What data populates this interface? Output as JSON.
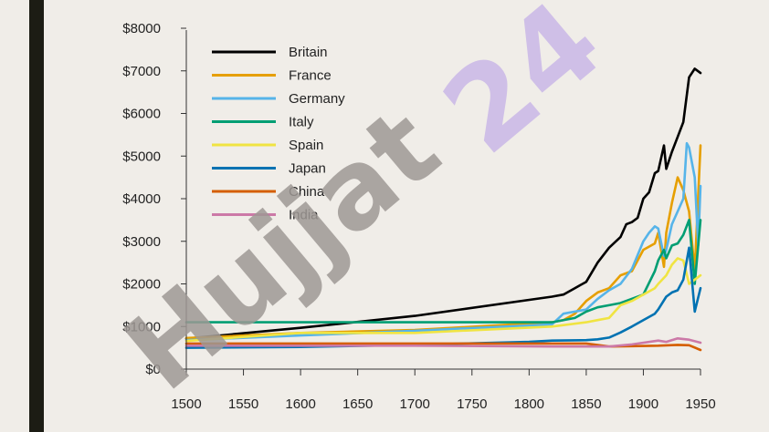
{
  "watermarks": [
    {
      "text": "Hujjat",
      "color": "#9e9894"
    },
    {
      "text": "24",
      "color": "#c9b6e6"
    }
  ],
  "chart_data": {
    "type": "line",
    "title": "",
    "xlabel": "",
    "ylabel": "",
    "xlim": [
      1500,
      1950
    ],
    "ylim": [
      0,
      8000
    ],
    "x_ticks": [
      1500,
      1550,
      1600,
      1650,
      1700,
      1750,
      1800,
      1850,
      1900,
      1950
    ],
    "y_ticks": [
      {
        "value": 0,
        "label": "$0"
      },
      {
        "value": 1000,
        "label": "$1000"
      },
      {
        "value": 2000,
        "label": "$2000"
      },
      {
        "value": 3000,
        "label": "$3000"
      },
      {
        "value": 4000,
        "label": "$4000"
      },
      {
        "value": 5000,
        "label": "$5000"
      },
      {
        "value": 6000,
        "label": "$6000"
      },
      {
        "value": 7000,
        "label": "$7000"
      },
      {
        "value": 8000,
        "label": "$8000"
      }
    ],
    "grid": false,
    "legend_position": "top-left",
    "series": [
      {
        "name": "Britain",
        "color": "#000000",
        "points": [
          [
            1500,
            715
          ],
          [
            1600,
            970
          ],
          [
            1700,
            1250
          ],
          [
            1820,
            1700
          ],
          [
            1830,
            1750
          ],
          [
            1840,
            1900
          ],
          [
            1850,
            2050
          ],
          [
            1860,
            2500
          ],
          [
            1870,
            2850
          ],
          [
            1880,
            3100
          ],
          [
            1885,
            3400
          ],
          [
            1890,
            3450
          ],
          [
            1895,
            3550
          ],
          [
            1900,
            4000
          ],
          [
            1905,
            4150
          ],
          [
            1910,
            4600
          ],
          [
            1913,
            4650
          ],
          [
            1918,
            5250
          ],
          [
            1920,
            4700
          ],
          [
            1925,
            5100
          ],
          [
            1930,
            5450
          ],
          [
            1935,
            5800
          ],
          [
            1940,
            6850
          ],
          [
            1945,
            7050
          ],
          [
            1950,
            6950
          ]
        ]
      },
      {
        "name": "France",
        "color": "#e69f00",
        "points": [
          [
            1500,
            730
          ],
          [
            1600,
            850
          ],
          [
            1700,
            920
          ],
          [
            1820,
            1100
          ],
          [
            1830,
            1150
          ],
          [
            1840,
            1300
          ],
          [
            1850,
            1600
          ],
          [
            1860,
            1800
          ],
          [
            1870,
            1900
          ],
          [
            1880,
            2200
          ],
          [
            1890,
            2300
          ],
          [
            1900,
            2800
          ],
          [
            1910,
            2950
          ],
          [
            1913,
            3200
          ],
          [
            1918,
            2400
          ],
          [
            1920,
            3200
          ],
          [
            1925,
            3900
          ],
          [
            1930,
            4500
          ],
          [
            1935,
            4200
          ],
          [
            1940,
            3700
          ],
          [
            1945,
            2300
          ],
          [
            1950,
            5250
          ]
        ]
      },
      {
        "name": "Germany",
        "color": "#56b4e9",
        "points": [
          [
            1500,
            680
          ],
          [
            1600,
            790
          ],
          [
            1700,
            900
          ],
          [
            1820,
            1050
          ],
          [
            1830,
            1300
          ],
          [
            1840,
            1350
          ],
          [
            1850,
            1400
          ],
          [
            1860,
            1650
          ],
          [
            1870,
            1850
          ],
          [
            1880,
            2000
          ],
          [
            1890,
            2350
          ],
          [
            1900,
            3000
          ],
          [
            1905,
            3200
          ],
          [
            1910,
            3350
          ],
          [
            1913,
            3300
          ],
          [
            1918,
            2650
          ],
          [
            1920,
            2800
          ],
          [
            1925,
            3400
          ],
          [
            1930,
            3700
          ],
          [
            1935,
            4000
          ],
          [
            1938,
            5300
          ],
          [
            1940,
            5200
          ],
          [
            1945,
            4500
          ],
          [
            1948,
            2900
          ],
          [
            1950,
            4300
          ]
        ]
      },
      {
        "name": "Italy",
        "color": "#009e73",
        "points": [
          [
            1500,
            1100
          ],
          [
            1600,
            1100
          ],
          [
            1700,
            1100
          ],
          [
            1820,
            1100
          ],
          [
            1840,
            1200
          ],
          [
            1850,
            1350
          ],
          [
            1860,
            1450
          ],
          [
            1870,
            1500
          ],
          [
            1880,
            1550
          ],
          [
            1890,
            1650
          ],
          [
            1900,
            1750
          ],
          [
            1910,
            2300
          ],
          [
            1913,
            2550
          ],
          [
            1918,
            2800
          ],
          [
            1920,
            2600
          ],
          [
            1925,
            2900
          ],
          [
            1930,
            2950
          ],
          [
            1935,
            3150
          ],
          [
            1940,
            3500
          ],
          [
            1945,
            2000
          ],
          [
            1950,
            3500
          ]
        ]
      },
      {
        "name": "Spain",
        "color": "#f0e442",
        "points": [
          [
            1500,
            660
          ],
          [
            1600,
            850
          ],
          [
            1700,
            850
          ],
          [
            1820,
            1000
          ],
          [
            1850,
            1100
          ],
          [
            1860,
            1150
          ],
          [
            1870,
            1200
          ],
          [
            1880,
            1500
          ],
          [
            1890,
            1600
          ],
          [
            1900,
            1750
          ],
          [
            1910,
            1900
          ],
          [
            1913,
            2000
          ],
          [
            1920,
            2200
          ],
          [
            1925,
            2450
          ],
          [
            1930,
            2600
          ],
          [
            1935,
            2550
          ],
          [
            1940,
            2000
          ],
          [
            1945,
            2100
          ],
          [
            1950,
            2200
          ]
        ]
      },
      {
        "name": "Japan",
        "color": "#0072b2",
        "points": [
          [
            1500,
            500
          ],
          [
            1600,
            520
          ],
          [
            1700,
            570
          ],
          [
            1800,
            640
          ],
          [
            1820,
            670
          ],
          [
            1850,
            680
          ],
          [
            1860,
            700
          ],
          [
            1870,
            740
          ],
          [
            1880,
            860
          ],
          [
            1890,
            1000
          ],
          [
            1900,
            1150
          ],
          [
            1910,
            1300
          ],
          [
            1913,
            1400
          ],
          [
            1920,
            1700
          ],
          [
            1925,
            1800
          ],
          [
            1930,
            1850
          ],
          [
            1935,
            2100
          ],
          [
            1940,
            2850
          ],
          [
            1945,
            1350
          ],
          [
            1950,
            1900
          ]
        ]
      },
      {
        "name": "China",
        "color": "#d55e00",
        "points": [
          [
            1500,
            600
          ],
          [
            1600,
            600
          ],
          [
            1700,
            600
          ],
          [
            1820,
            600
          ],
          [
            1850,
            600
          ],
          [
            1870,
            530
          ],
          [
            1890,
            540
          ],
          [
            1913,
            550
          ],
          [
            1930,
            570
          ],
          [
            1940,
            560
          ],
          [
            1950,
            450
          ]
        ]
      },
      {
        "name": "India",
        "color": "#cc79a7",
        "points": [
          [
            1500,
            550
          ],
          [
            1600,
            550
          ],
          [
            1700,
            550
          ],
          [
            1820,
            530
          ],
          [
            1850,
            530
          ],
          [
            1870,
            530
          ],
          [
            1890,
            580
          ],
          [
            1913,
            670
          ],
          [
            1920,
            640
          ],
          [
            1930,
            720
          ],
          [
            1940,
            690
          ],
          [
            1950,
            620
          ]
        ]
      }
    ]
  }
}
